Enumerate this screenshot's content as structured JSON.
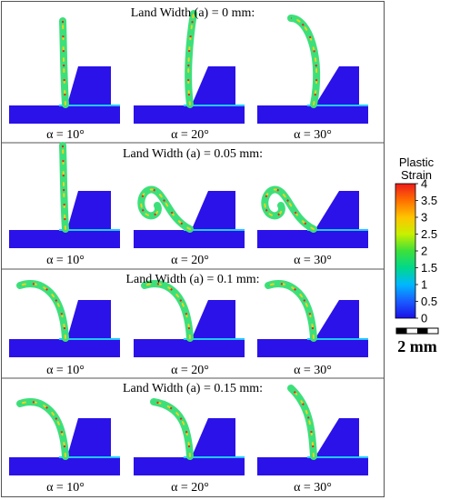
{
  "figure": {
    "panels": [
      {
        "title": "Land Width (a) = 0 mm:",
        "cases": [
          {
            "label": "α = 10°",
            "angle": 10,
            "chip": "straight"
          },
          {
            "label": "α = 20°",
            "angle": 20,
            "chip": "straight"
          },
          {
            "label": "α = 30°",
            "angle": 30,
            "chip": "arc-tall"
          }
        ]
      },
      {
        "title": "Land Width (a) = 0.05 mm:",
        "cases": [
          {
            "label": "α = 10°",
            "angle": 10,
            "chip": "straight"
          },
          {
            "label": "α = 20°",
            "angle": 20,
            "chip": "curl"
          },
          {
            "label": "α = 30°",
            "angle": 30,
            "chip": "curl"
          }
        ]
      },
      {
        "title": "Land Width (a) = 0.1 mm:",
        "cases": [
          {
            "label": "α = 10°",
            "angle": 10,
            "chip": "arc-left"
          },
          {
            "label": "α = 20°",
            "angle": 20,
            "chip": "arc-left"
          },
          {
            "label": "α = 30°",
            "angle": 30,
            "chip": "arc-left"
          }
        ]
      },
      {
        "title": "Land Width (a) = 0.15 mm:",
        "cases": [
          {
            "label": "α = 10°",
            "angle": 10,
            "chip": "arc-left"
          },
          {
            "label": "α = 20°",
            "angle": 20,
            "chip": "arc-left"
          },
          {
            "label": "α = 30°",
            "angle": 30,
            "chip": "arc-left"
          }
        ]
      }
    ]
  },
  "colorbar": {
    "title_line1": "Plastic",
    "title_line2": "Strain",
    "ticks": [
      "4",
      "3.5",
      "3",
      "2.5",
      "2",
      "1.5",
      "1",
      "0.5",
      "0"
    ],
    "colors": [
      "#ee1c1c",
      "#ff6f00",
      "#ffc400",
      "#c8f000",
      "#3de03a",
      "#00d88a",
      "#00b8ff",
      "#1a5cff",
      "#1a10e8"
    ]
  },
  "scale_bar": {
    "label": "2 mm"
  },
  "colors": {
    "workpiece": "#2a12e8",
    "tool": "#2a12e8",
    "chip_base": "#3ce07a",
    "chip_hot": "#e8231c",
    "chip_warm": "#f0d020",
    "edge": "#22c8ff"
  }
}
